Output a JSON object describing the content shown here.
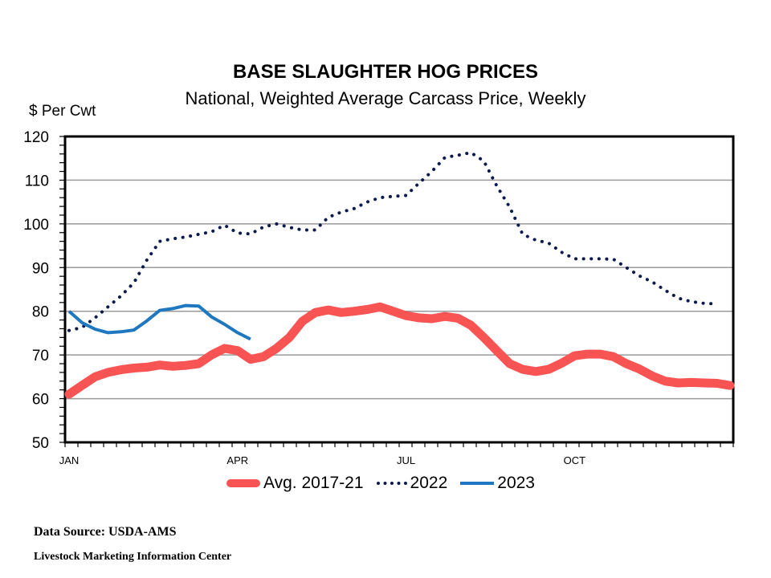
{
  "chart_data": {
    "type": "line",
    "title": "BASE SLAUGHTER HOG PRICES",
    "subtitle": "National, Weighted Average Carcass Price, Weekly",
    "ylabel": "$ Per Cwt",
    "xlabel": "",
    "ylim": [
      50,
      120
    ],
    "yticks": [
      50,
      60,
      70,
      80,
      90,
      100,
      110,
      120
    ],
    "x_tick_labels": [
      {
        "label": "JAN",
        "week": 1
      },
      {
        "label": "APR",
        "week": 14
      },
      {
        "label": "JUL",
        "week": 27
      },
      {
        "label": "OCT",
        "week": 40
      }
    ],
    "x_unit": "week of year",
    "grid": true,
    "legend_position": "bottom",
    "series": [
      {
        "name": "Avg. 2017-21",
        "color": "#F85454",
        "style": "thick-solid",
        "values": [
          61,
          63,
          65,
          66,
          66.6,
          67,
          67.2,
          67.7,
          67.4,
          67.6,
          68,
          70,
          71.5,
          71,
          69,
          69.6,
          71.5,
          74,
          77.7,
          79.7,
          80.3,
          79.7,
          80,
          80.4,
          81,
          80,
          79,
          78.5,
          78.3,
          78.8,
          78.4,
          76.8,
          74,
          71,
          68,
          66.7,
          66.2,
          66.7,
          68.1,
          69.8,
          70.2,
          70.2,
          69.6,
          68,
          66.8,
          65.2,
          64,
          63.6,
          63.7,
          63.6,
          63.5,
          63
        ]
      },
      {
        "name": "2022",
        "color": "#0B1A4C",
        "style": "dotted",
        "values": [
          75.6,
          76.3,
          78.5,
          81,
          83.5,
          86.5,
          91.7,
          96,
          96.6,
          97,
          97.6,
          98.2,
          99.7,
          97.9,
          97.7,
          99.3,
          100,
          99.2,
          98.6,
          98.6,
          101.5,
          102.7,
          103.5,
          105,
          106,
          106.3,
          106.5,
          109.3,
          112,
          115.2,
          115.7,
          116.3,
          114.4,
          108.7,
          103.8,
          97.6,
          96.3,
          95.6,
          93.5,
          92,
          92,
          92,
          91.9,
          90,
          88.1,
          86.7,
          84.8,
          83,
          82.2,
          81.8,
          81.7
        ]
      },
      {
        "name": "2023",
        "color": "#1F77C0",
        "style": "solid",
        "values": [
          80,
          77.4,
          75.9,
          75.1,
          75.3,
          75.7,
          77.8,
          80.2,
          80.6,
          81.3,
          81.2,
          78.7,
          77,
          75.1,
          73.6
        ]
      }
    ]
  },
  "footer": {
    "source": "Data Source:  USDA-AMS",
    "org": "Livestock Marketing Information  Center"
  }
}
